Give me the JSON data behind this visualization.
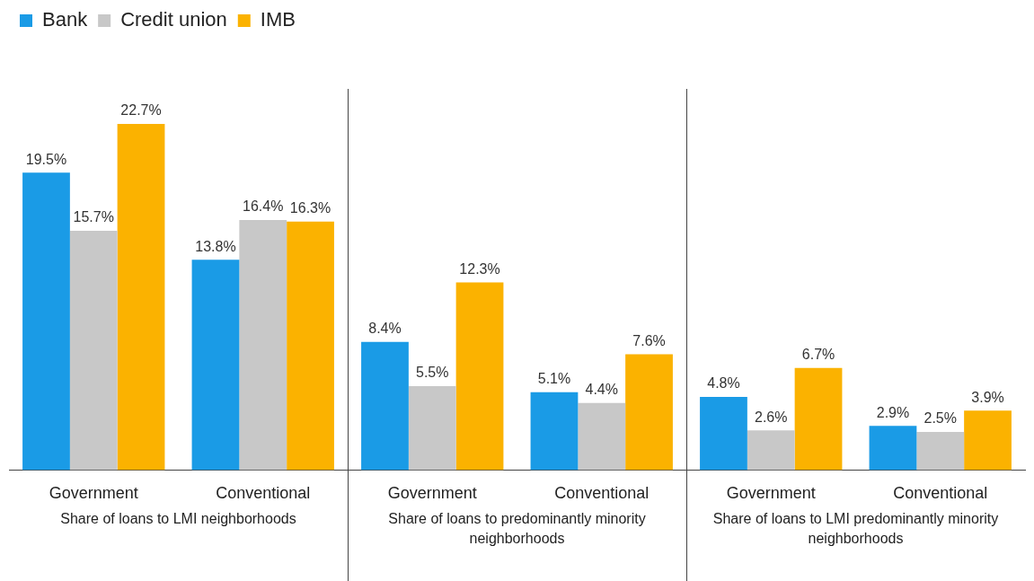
{
  "chart_data": {
    "type": "bar",
    "categories": [
      "Government",
      "Conventional",
      "Government",
      "Conventional",
      "Government",
      "Conventional"
    ],
    "series": [
      {
        "name": "Bank",
        "color": "#1a9be6",
        "values": [
          19.5,
          13.8,
          8.4,
          5.1,
          4.8,
          2.9
        ],
        "value_labels": [
          "19.5%",
          "13.8%",
          "8.4%",
          "5.1%",
          "4.8%",
          "2.9%"
        ]
      },
      {
        "name": "Credit union",
        "color": "#c8c8c8",
        "values": [
          15.7,
          16.4,
          5.5,
          4.4,
          2.6,
          2.5
        ],
        "value_labels": [
          "15.7%",
          "16.4%",
          "5.5%",
          "4.4%",
          "2.6%",
          "2.5%"
        ]
      },
      {
        "name": "IMB",
        "color": "#fbb200",
        "values": [
          22.7,
          16.3,
          12.3,
          7.6,
          6.7,
          3.9
        ],
        "value_labels": [
          "22.7%",
          "16.3%",
          "12.3%",
          "7.6%",
          "6.7%",
          "3.9%"
        ]
      }
    ],
    "annotations": [
      "Share of loans to LMI neighborhoods",
      "Share of loans to predominantly minority neighborhoods",
      "Share of loans to LMI predominantly minority neighborhoods"
    ],
    "legend": "top left",
    "grid": false
  }
}
